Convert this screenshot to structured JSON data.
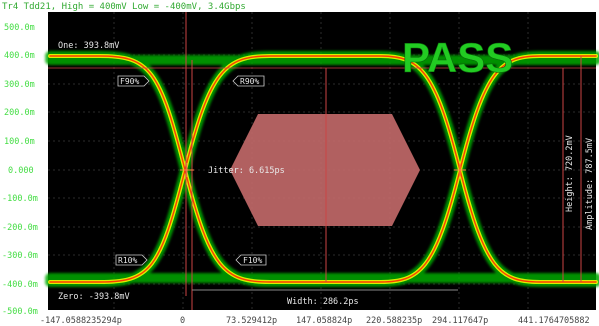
{
  "header": {
    "title": "Tr4 Tdd21, High = 400mV Low = -400mV, 3.4Gbps"
  },
  "status": {
    "result": "PASS",
    "color": "#22cc22"
  },
  "y_axis": {
    "ticks": [
      "500.0m",
      "400.0m",
      "300.0m",
      "200.0m",
      "100.0m",
      "0.000",
      "-100.0m",
      "-200.0m",
      "-300.0m",
      "-400.0m",
      "-500.0m"
    ]
  },
  "x_axis": {
    "ticks": [
      "-147.0588235294p",
      "0",
      "73.529412p",
      "147.058824p",
      "220.588235p",
      "294.117647p",
      "441.1764705882"
    ]
  },
  "measurements": {
    "one": "One: 393.8mV",
    "zero": "Zero: -393.8mV",
    "jitter": "Jitter: 6.615ps",
    "width": "Width: 286.2ps",
    "height": "Height: 720.2mV",
    "amplitude": "Amplitude: 787.5mV"
  },
  "markers": {
    "f90": "F90%",
    "r90": "R90%",
    "r10": "R10%",
    "f10": "F10%"
  },
  "colors": {
    "background": "#000000",
    "trace_outer": "#00aa00",
    "trace_mid": "#ffff00",
    "trace_core": "#ff3300",
    "mask": "#c46a6a",
    "grid": "#2c2c2c"
  }
}
